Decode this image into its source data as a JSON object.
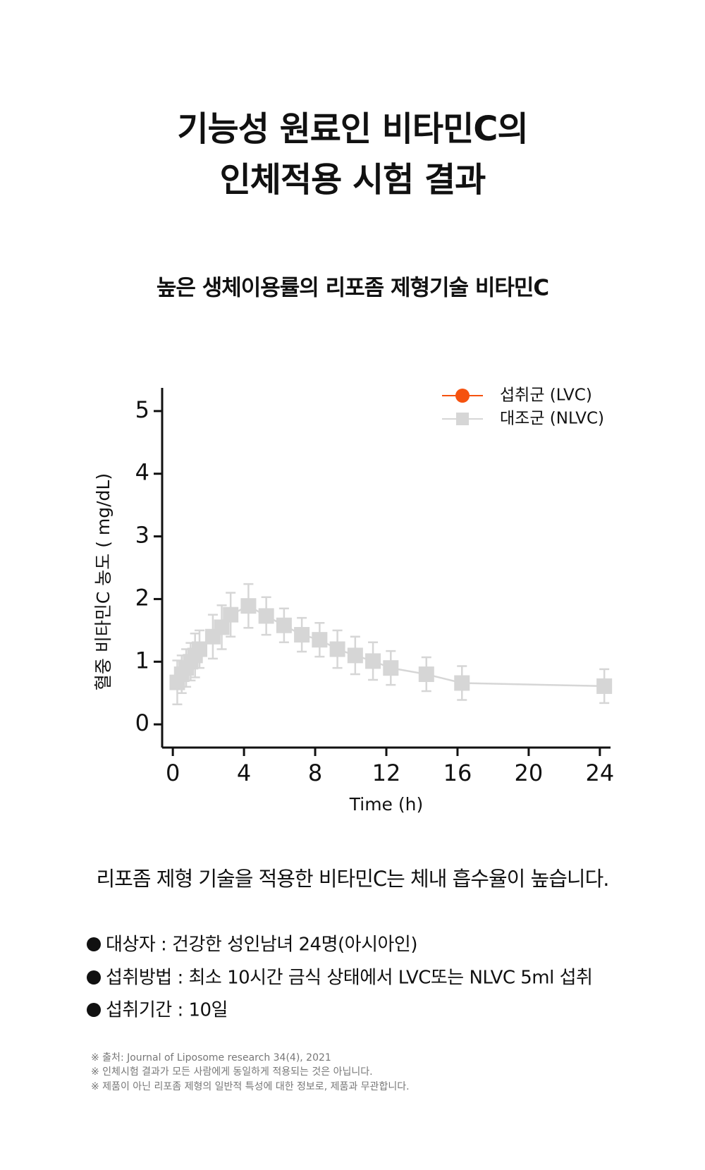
{
  "header": {
    "title_lines": [
      "기능성 원료인 비타민C의",
      "인체적용 시험 결과"
    ],
    "subtitle": "높은 생체이용률의 리포좀 제형기술 비타민C"
  },
  "chart_data": {
    "type": "line",
    "x": [
      0.25,
      0.5,
      0.75,
      1,
      1.25,
      1.5,
      2.25,
      2.75,
      3.25,
      4.25,
      5.25,
      6.25,
      7.25,
      8.25,
      9.25,
      10.25,
      11.25,
      12.25,
      14.25,
      16.25,
      24.25
    ],
    "series": [
      {
        "name": "섭취군 (LVC)",
        "color": "#f5520f",
        "marker": "circle",
        "values": [
          null,
          null,
          null,
          null,
          null,
          null,
          null,
          null,
          null,
          null,
          null,
          null,
          null,
          null,
          null,
          null,
          null,
          null,
          null,
          null,
          null
        ]
      },
      {
        "name": "대조군 (NLVC)",
        "color": "#d6d6d6",
        "marker": "square",
        "values": [
          0.67,
          0.8,
          0.9,
          1.0,
          1.1,
          1.2,
          1.4,
          1.55,
          1.75,
          1.89,
          1.73,
          1.58,
          1.43,
          1.35,
          1.2,
          1.1,
          1.01,
          0.9,
          0.8,
          0.66,
          0.61
        ],
        "errors": [
          0.35,
          0.3,
          0.3,
          0.3,
          0.35,
          0.3,
          0.35,
          0.35,
          0.35,
          0.35,
          0.3,
          0.27,
          0.27,
          0.27,
          0.3,
          0.3,
          0.3,
          0.27,
          0.27,
          0.27,
          0.27
        ]
      }
    ],
    "xlabel": "Time (h)",
    "ylabel": "혈중 비타민C 농도 ( mg/dL)",
    "xlim": [
      -0.6,
      24.6
    ],
    "ylim": [
      -0.37,
      5.37
    ],
    "xticks": [
      0,
      4,
      8,
      12,
      16,
      20,
      24
    ],
    "yticks": [
      0,
      1,
      2,
      3,
      4,
      5
    ],
    "legend": "top-right",
    "grid": false
  },
  "body": {
    "statement": "리포좀 제형 기술을 적용한 비타민C는 체내 흡수율이 높습니다.",
    "bullets": [
      "대상자 : 건강한 성인남녀 24명(아시아인)",
      "섭취방법 : 최소 10시간 금식 상태에서 LVC또는 NLVC 5ml 섭취",
      "섭취기간 : 10일"
    ],
    "notes": [
      "※ 출처: Journal of Liposome research 34(4), 2021",
      "※ 인체시험 결과가 모든 사람에게 동일하게 적용되는 것은 아닙니다.",
      "※ 제품이 아닌 리포좀 제형의 일반적 특성에 대한 정보로, 제품과 무관합니다."
    ]
  }
}
